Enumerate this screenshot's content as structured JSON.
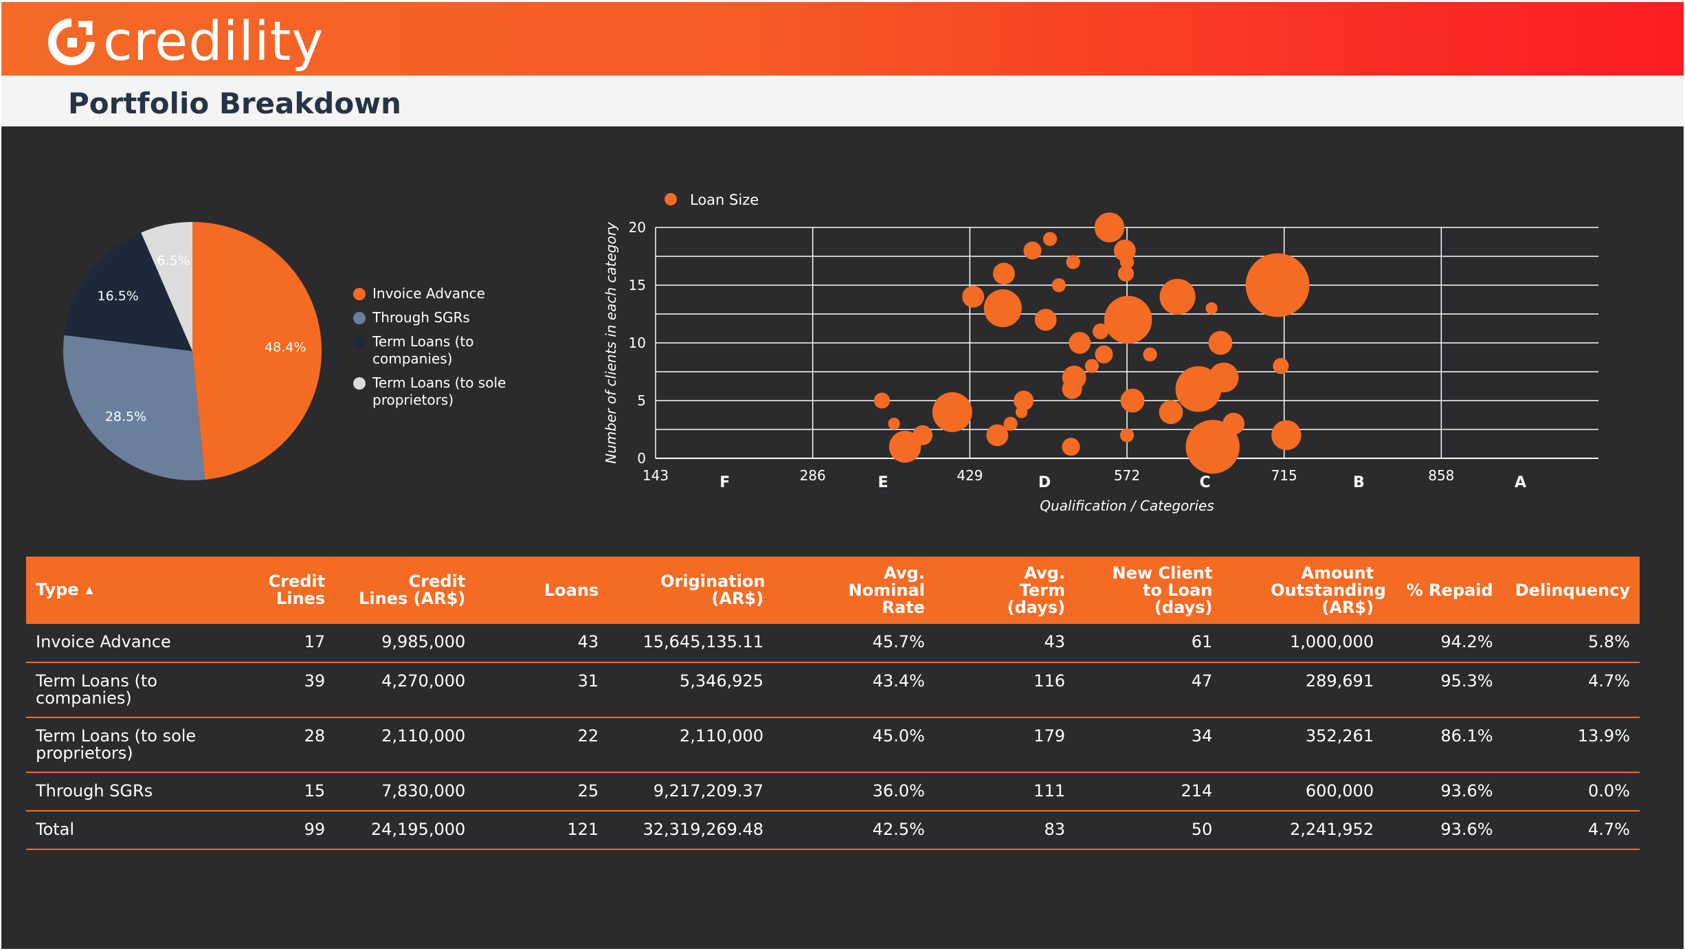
{
  "brand": {
    "name": "credility",
    "colors": {
      "primary": "#f46b24",
      "header_end": "#fd1d22",
      "dark_bg": "#2b2b2e",
      "title": "#263445"
    }
  },
  "page": {
    "title": "Portfolio Breakdown"
  },
  "pie_chart": {
    "type": "pie",
    "slices": [
      {
        "label": "Invoice Advance",
        "value": 48.4,
        "display": "48.4%",
        "color": "#f46b24"
      },
      {
        "label": "Through SGRs",
        "value": 28.5,
        "display": "28.5%",
        "color": "#6b7f9c"
      },
      {
        "label": "Term Loans (to companies)",
        "value": 16.5,
        "display": "16.5%",
        "color": "#1d2838"
      },
      {
        "label": "Term Loans (to sole proprietors)",
        "value": 6.5,
        "display": "6.5%",
        "color": "#dcdcdc"
      }
    ]
  },
  "chart_data": {
    "type": "scatter",
    "legend": {
      "label": "Loan Size",
      "position": "top-left"
    },
    "xlabel": "Qualification / Categories",
    "ylabel": "Number of clients in each category",
    "xlim": [
      143,
      1001
    ],
    "ylim": [
      0,
      20
    ],
    "x_ticks": [
      143,
      286,
      429,
      572,
      715,
      858
    ],
    "y_ticks": [
      0,
      5,
      10,
      15,
      20
    ],
    "category_labels": [
      {
        "label": "F",
        "x": 206
      },
      {
        "label": "E",
        "x": 350
      },
      {
        "label": "D",
        "x": 497
      },
      {
        "label": "C",
        "x": 643
      },
      {
        "label": "B",
        "x": 783
      },
      {
        "label": "A",
        "x": 930
      }
    ],
    "grid": true,
    "points": [
      {
        "x": 349,
        "y": 5,
        "size": 8
      },
      {
        "x": 360,
        "y": 3,
        "size": 6
      },
      {
        "x": 370,
        "y": 1,
        "size": 16
      },
      {
        "x": 386,
        "y": 2,
        "size": 10
      },
      {
        "x": 413,
        "y": 4,
        "size": 20
      },
      {
        "x": 432,
        "y": 14,
        "size": 11
      },
      {
        "x": 454,
        "y": 2,
        "size": 11
      },
      {
        "x": 459,
        "y": 13,
        "size": 19
      },
      {
        "x": 460,
        "y": 16,
        "size": 11
      },
      {
        "x": 466,
        "y": 3,
        "size": 7
      },
      {
        "x": 476,
        "y": 4,
        "size": 6
      },
      {
        "x": 478,
        "y": 5,
        "size": 10
      },
      {
        "x": 486,
        "y": 18,
        "size": 9
      },
      {
        "x": 498,
        "y": 12,
        "size": 11
      },
      {
        "x": 502,
        "y": 19,
        "size": 7
      },
      {
        "x": 510,
        "y": 15,
        "size": 7
      },
      {
        "x": 521,
        "y": 1,
        "size": 9
      },
      {
        "x": 522,
        "y": 6,
        "size": 10
      },
      {
        "x": 523,
        "y": 17,
        "size": 7
      },
      {
        "x": 524,
        "y": 7,
        "size": 12
      },
      {
        "x": 529,
        "y": 10,
        "size": 11
      },
      {
        "x": 540,
        "y": 8,
        "size": 7
      },
      {
        "x": 548,
        "y": 11,
        "size": 8
      },
      {
        "x": 551,
        "y": 9,
        "size": 9
      },
      {
        "x": 556,
        "y": 20,
        "size": 15
      },
      {
        "x": 570,
        "y": 18,
        "size": 11
      },
      {
        "x": 571,
        "y": 16,
        "size": 8
      },
      {
        "x": 572,
        "y": 17,
        "size": 7
      },
      {
        "x": 572,
        "y": 2,
        "size": 7
      },
      {
        "x": 573,
        "y": 12,
        "size": 24
      },
      {
        "x": 577,
        "y": 5,
        "size": 12
      },
      {
        "x": 593,
        "y": 9,
        "size": 7
      },
      {
        "x": 612,
        "y": 4,
        "size": 12
      },
      {
        "x": 618,
        "y": 14,
        "size": 18
      },
      {
        "x": 637,
        "y": 6,
        "size": 23
      },
      {
        "x": 649,
        "y": 13,
        "size": 6
      },
      {
        "x": 650,
        "y": 1,
        "size": 27
      },
      {
        "x": 657,
        "y": 10,
        "size": 12
      },
      {
        "x": 660,
        "y": 7,
        "size": 15
      },
      {
        "x": 669,
        "y": 3,
        "size": 11
      },
      {
        "x": 709,
        "y": 15,
        "size": 32
      },
      {
        "x": 712,
        "y": 8,
        "size": 8
      },
      {
        "x": 717,
        "y": 2,
        "size": 15
      }
    ]
  },
  "table": {
    "columns": [
      {
        "label": "Type",
        "sorted": "asc"
      },
      {
        "label": "Credit Lines"
      },
      {
        "label": "Credit Lines (AR$)"
      },
      {
        "label": "Loans"
      },
      {
        "label": "Origination (AR$)"
      },
      {
        "label": "Avg. Nominal Rate"
      },
      {
        "label": "Avg. Term (days)"
      },
      {
        "label": "New Client to Loan (days)"
      },
      {
        "label": "Amount Outstanding (AR$)"
      },
      {
        "label": "% Repaid"
      },
      {
        "label": "Delinquency"
      }
    ],
    "rows": [
      [
        "Invoice Advance",
        "17",
        "9,985,000",
        "43",
        "15,645,135.11",
        "45.7%",
        "43",
        "61",
        "1,000,000",
        "94.2%",
        "5.8%"
      ],
      [
        "Term Loans (to companies)",
        "39",
        "4,270,000",
        "31",
        "5,346,925",
        "43.4%",
        "116",
        "47",
        "289,691",
        "95.3%",
        "4.7%"
      ],
      [
        "Term Loans (to sole proprietors)",
        "28",
        "2,110,000",
        "22",
        "2,110,000",
        "45.0%",
        "179",
        "34",
        "352,261",
        "86.1%",
        "13.9%"
      ],
      [
        "Through SGRs",
        "15",
        "7,830,000",
        "25",
        "9,217,209.37",
        "36.0%",
        "111",
        "214",
        "600,000",
        "93.6%",
        "0.0%"
      ],
      [
        "Total",
        "99",
        "24,195,000",
        "121",
        "32,319,269.48",
        "42.5%",
        "83",
        "50",
        "2,241,952",
        "93.6%",
        "4.7%"
      ]
    ]
  }
}
